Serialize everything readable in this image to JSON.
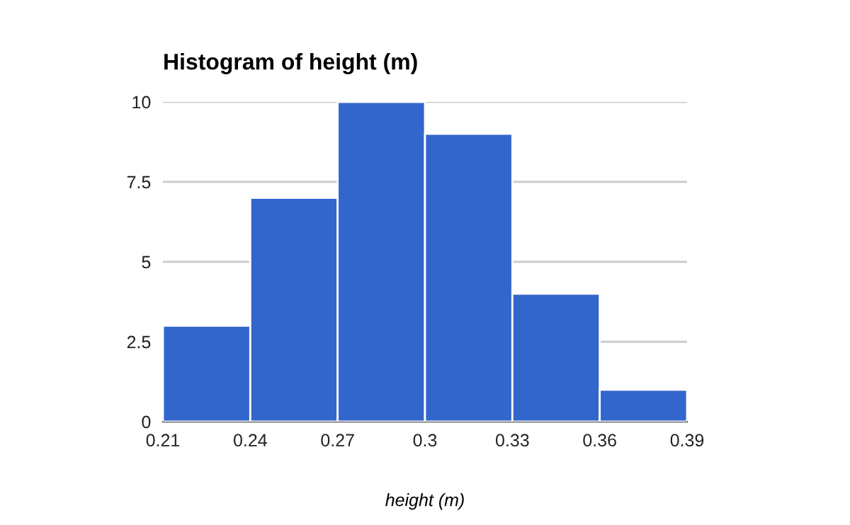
{
  "chart_data": {
    "type": "histogram",
    "title": "Histogram of height (m)",
    "xlabel": "height (m)",
    "bins": [
      0.21,
      0.24,
      0.27,
      0.3,
      0.33,
      0.36,
      0.39
    ],
    "values": [
      3,
      7,
      10,
      9,
      4,
      1
    ],
    "color": "#3366cc",
    "xlim": [
      0.21,
      0.39
    ],
    "xticks": [
      0.21,
      0.24,
      0.27,
      0.3,
      0.33,
      0.36,
      0.39
    ],
    "ylim": [
      0,
      10
    ],
    "yticks": [
      0,
      2.5,
      5,
      7.5,
      10
    ],
    "grid": "y",
    "legend": false
  }
}
